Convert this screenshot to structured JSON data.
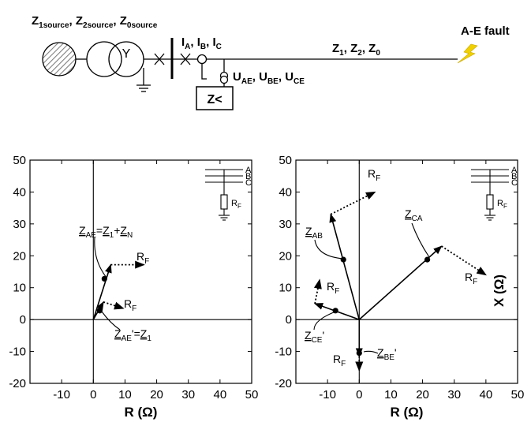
{
  "one_line": {
    "source_label": {
      "z1": "Z",
      "s1": "1source",
      "sep1": ", ",
      "z2": "Z",
      "s2": "2source",
      "sep2": ", ",
      "z0": "Z",
      "s0": "0source"
    },
    "currents": {
      "i": "I",
      "a": "A",
      "c1": ", ",
      "i2": "I",
      "b": "B",
      "c2": ", ",
      "i3": "I",
      "c": "C"
    },
    "voltages": {
      "u": "U",
      "ae": "AE",
      "c1": ", ",
      "u2": "U",
      "be": "BE",
      "c2": ", ",
      "u3": "U",
      "ce": "CE"
    },
    "relay": "Z<",
    "line_label": {
      "z": "Z",
      "s1": "1",
      "c1": ", ",
      "z2": "Z",
      "s2": "2",
      "c2": ", ",
      "z3": "Z",
      "s0": "0"
    },
    "fault": "A-E fault",
    "transformer_symbol": "Y"
  },
  "inset": {
    "phases": [
      "A",
      "B",
      "C"
    ],
    "rf": {
      "r": "R",
      "sub": "F"
    }
  },
  "chart_data": [
    {
      "type": "scatter",
      "xlabel": "R (Ω)",
      "ylabel": "",
      "xlim": [
        -20,
        50
      ],
      "ylim": [
        -20,
        50
      ],
      "xticks": [
        "-10",
        "0",
        "10",
        "20",
        "30",
        "40",
        "50"
      ],
      "yticks": [
        "-20",
        "-10",
        "0",
        "10",
        "20",
        "30",
        "40",
        "50"
      ],
      "points": [
        {
          "name": "Z_AE=Z_1+Z_N",
          "x": 3.5,
          "y": 12.8
        },
        {
          "name": "Z_AE'=Z_1",
          "x": 2,
          "y": 2.8
        }
      ],
      "impedance_vectors": [
        {
          "from": [
            0,
            0
          ],
          "to": [
            5.5,
            17.2
          ],
          "style": "solid"
        },
        {
          "from": [
            5.5,
            17.2
          ],
          "to": [
            16,
            17.2
          ],
          "style": "dotted",
          "label": "R_F"
        },
        {
          "from": [
            0,
            0
          ],
          "to": [
            3.2,
            5.5
          ],
          "style": "solid"
        },
        {
          "from": [
            3.2,
            5.5
          ],
          "to": [
            9.5,
            3.5
          ],
          "style": "dotted",
          "label": "R_F"
        }
      ],
      "annotations": {
        "zae_full": {
          "z": "Z",
          "s1": "AE",
          "eq": "=",
          "z2": "Z",
          "s2": "1",
          "plus": "+",
          "z3": "Z",
          "s3": "N"
        },
        "zae_prime": {
          "z": "Z",
          "s1": "AE",
          "prime": "'",
          "eq": "=",
          "z2": "Z",
          "s2": "1"
        },
        "rf_upper": {
          "r": "R",
          "sub": "F"
        },
        "rf_lower": {
          "r": "R",
          "sub": "F"
        }
      }
    },
    {
      "type": "scatter",
      "xlabel": "R (Ω)",
      "ylabel": "X (Ω)",
      "xlim": [
        -20,
        50
      ],
      "ylim": [
        -20,
        50
      ],
      "xticks": [
        "-10",
        "0",
        "10",
        "20",
        "30",
        "40",
        "50"
      ],
      "yticks": [
        "-20",
        "-10",
        "0",
        "10",
        "20",
        "30",
        "40",
        "50"
      ],
      "points": [
        {
          "name": "Z_AB",
          "x": -5,
          "y": 18.8
        },
        {
          "name": "Z_CA",
          "x": 21.5,
          "y": 18.8
        },
        {
          "name": "Z_CE'",
          "x": -7.5,
          "y": 2.8
        },
        {
          "name": "Z_BE'",
          "x": 0,
          "y": -10.5
        }
      ],
      "impedance_vectors": [
        {
          "from": [
            0,
            0
          ],
          "to": [
            -9,
            33
          ],
          "style": "solid"
        },
        {
          "from": [
            -9,
            33
          ],
          "to": [
            5,
            40
          ],
          "style": "dotted",
          "label": "R_F"
        },
        {
          "from": [
            0,
            0
          ],
          "to": [
            26,
            23
          ],
          "style": "solid"
        },
        {
          "from": [
            26,
            23
          ],
          "to": [
            40,
            14
          ],
          "style": "dotted",
          "label": "R_F"
        },
        {
          "from": [
            0,
            0
          ],
          "to": [
            -14,
            5
          ],
          "style": "solid"
        },
        {
          "from": [
            -14,
            5
          ],
          "to": [
            -12.5,
            12.5
          ],
          "style": "dotted",
          "label": "R_F"
        },
        {
          "from": [
            0,
            0
          ],
          "to": [
            0,
            -11.5
          ],
          "style": "solid"
        },
        {
          "from": [
            0,
            -11.5
          ],
          "to": [
            0,
            -16
          ],
          "style": "dotted",
          "label": "R_F"
        }
      ],
      "annotations": {
        "rf_top": {
          "r": "R",
          "sub": "F"
        },
        "zab": {
          "z": "Z",
          "sub": "AB"
        },
        "zca": {
          "z": "Z",
          "sub": "CA"
        },
        "rf_ca": {
          "r": "R",
          "sub": "F"
        },
        "rf_ce": {
          "r": "R",
          "sub": "F"
        },
        "zce": {
          "z": "Z",
          "sub": "CE",
          "prime": "'"
        },
        "rf_be": {
          "r": "R",
          "sub": "F"
        },
        "zbe": {
          "z": "Z",
          "sub": "BE",
          "prime": "'"
        }
      }
    }
  ],
  "colors": {
    "line": "#000000",
    "background": "#ffffff",
    "fault_bolt": "#f0d000",
    "hatch": "#808080"
  }
}
